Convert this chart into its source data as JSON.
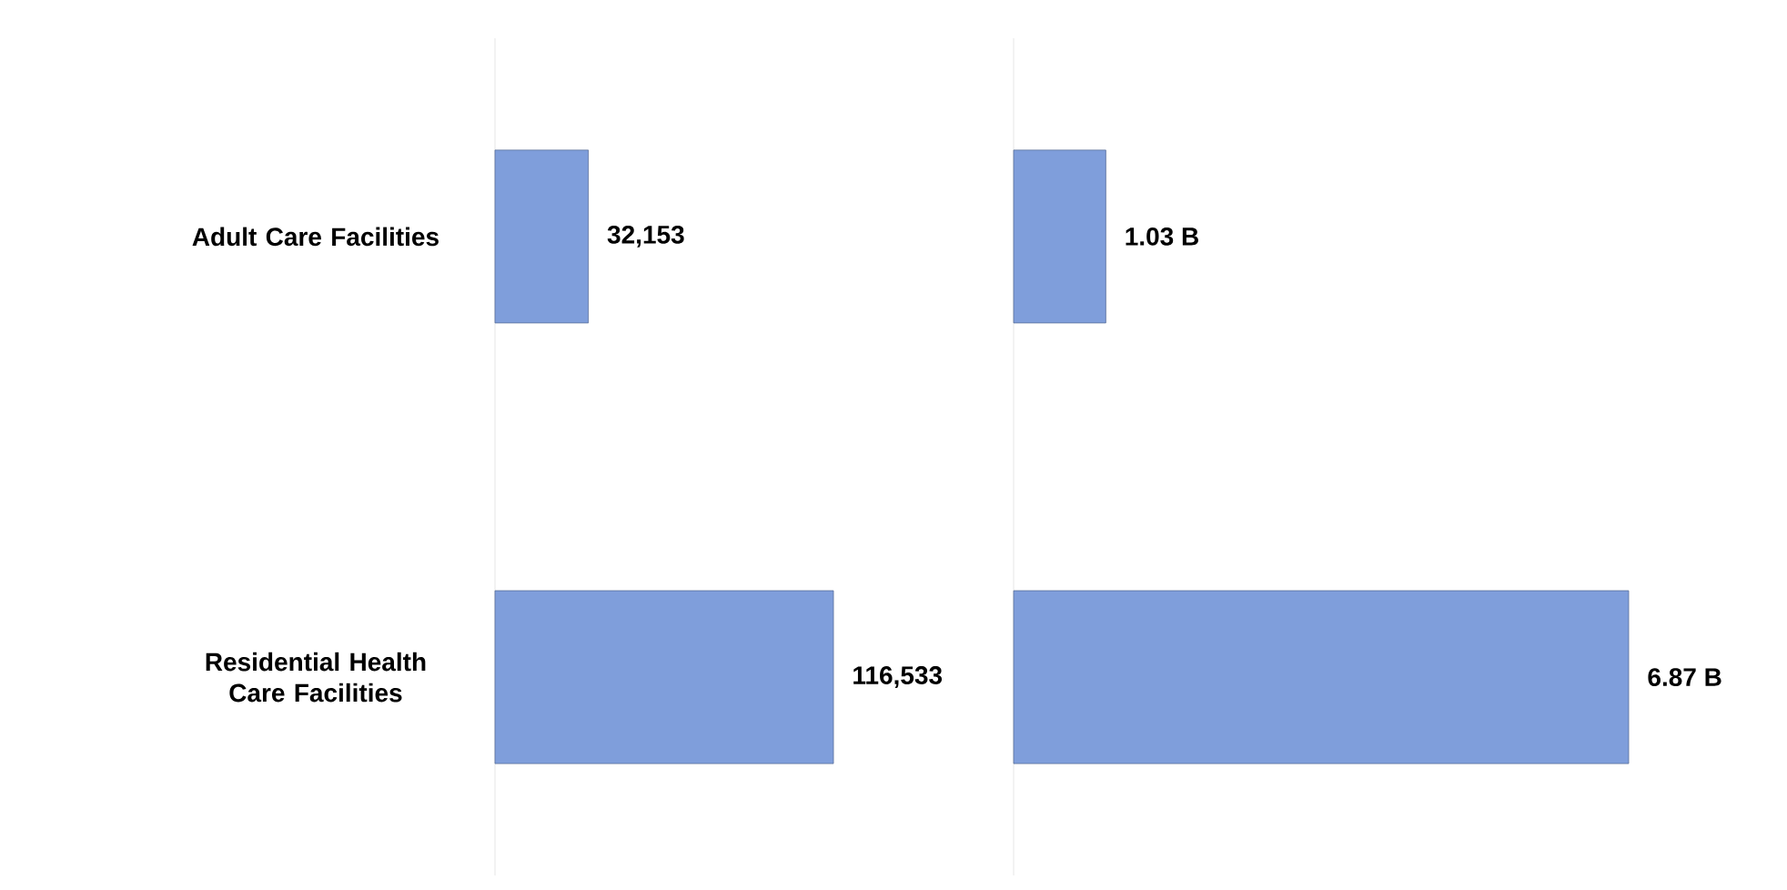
{
  "chart_data": [
    {
      "type": "bar",
      "orientation": "horizontal",
      "categories": [
        "Adult Care Facilities",
        "Residential Health Care Facilities"
      ],
      "values": [
        32153,
        116533
      ],
      "value_labels": [
        "32,153",
        "116,533"
      ],
      "color": "#7f9edb"
    },
    {
      "type": "bar",
      "orientation": "horizontal",
      "categories": [
        null,
        null
      ],
      "values": [
        1.03,
        6.87
      ],
      "value_labels": [
        "1.03 B",
        "6.87 B"
      ],
      "color": "#7f9edb"
    }
  ]
}
